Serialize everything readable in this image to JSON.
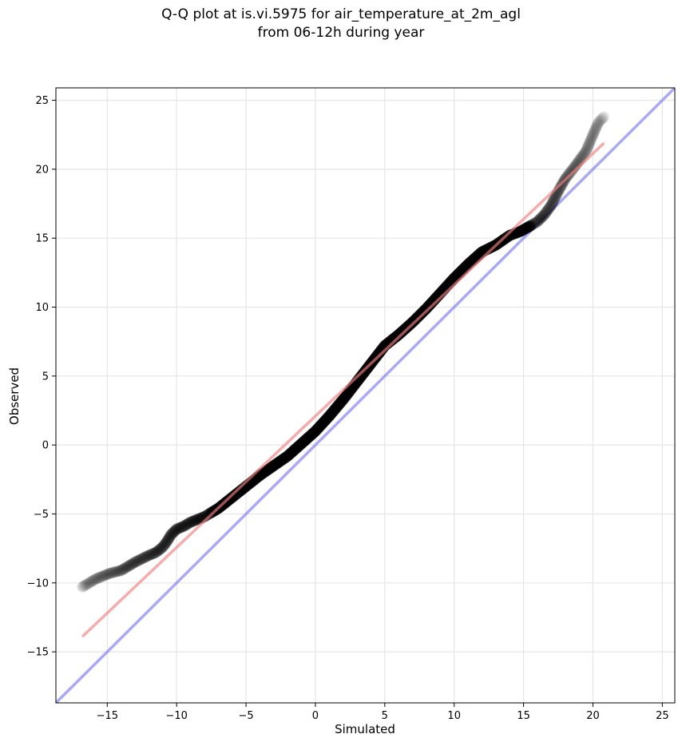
{
  "chart_data": {
    "type": "scatter",
    "title": [
      "Q-Q plot at is.vi.5975 for air_temperature_at_2m_agl",
      "from 06-12h during year"
    ],
    "xlabel": "Simulated",
    "ylabel": "Observed",
    "xlim": [
      -18.7,
      25.9
    ],
    "ylim": [
      -18.7,
      25.9
    ],
    "xticks": [
      -15,
      -10,
      -5,
      0,
      5,
      10,
      15,
      20,
      25
    ],
    "yticks": [
      -15,
      -10,
      -5,
      0,
      5,
      10,
      15,
      20,
      25
    ],
    "xtick_labels": [
      "−15",
      "−10",
      "−5",
      "0",
      "5",
      "10",
      "15",
      "20",
      "25"
    ],
    "ytick_labels": [
      "−15",
      "−10",
      "−5",
      "0",
      "5",
      "10",
      "15",
      "20",
      "25"
    ],
    "grid": true,
    "colors": {
      "points": "#000000",
      "fit_line": "#f08080",
      "identity_line": "#7b7bef",
      "grid": "#e6e6e6"
    },
    "quantile_curve": [
      [
        -16.8,
        -10.3
      ],
      [
        -15.8,
        -9.7
      ],
      [
        -14.8,
        -9.3
      ],
      [
        -14.0,
        -9.1
      ],
      [
        -13.0,
        -8.5
      ],
      [
        -12.0,
        -8.0
      ],
      [
        -11.5,
        -7.8
      ],
      [
        -11.0,
        -7.4
      ],
      [
        -10.7,
        -7.0
      ],
      [
        -10.4,
        -6.5
      ],
      [
        -10.0,
        -6.1
      ],
      [
        -9.5,
        -5.9
      ],
      [
        -9.0,
        -5.6
      ],
      [
        -8.5,
        -5.4
      ],
      [
        -8.0,
        -5.2
      ],
      [
        -7.5,
        -4.9
      ],
      [
        -7.0,
        -4.6
      ],
      [
        -6.5,
        -4.2
      ],
      [
        -6.0,
        -3.8
      ],
      [
        -5.5,
        -3.4
      ],
      [
        -5.0,
        -3.0
      ],
      [
        -4.5,
        -2.6
      ],
      [
        -4.0,
        -2.2
      ],
      [
        -3.0,
        -1.5
      ],
      [
        -2.0,
        -0.8
      ],
      [
        -1.0,
        0.1
      ],
      [
        0.0,
        1.0
      ],
      [
        1.0,
        2.1
      ],
      [
        2.0,
        3.3
      ],
      [
        3.0,
        4.6
      ],
      [
        4.0,
        5.9
      ],
      [
        5.0,
        7.2
      ],
      [
        6.0,
        8.0
      ],
      [
        7.0,
        8.9
      ],
      [
        8.0,
        9.9
      ],
      [
        9.0,
        11.0
      ],
      [
        10.0,
        12.1
      ],
      [
        11.0,
        13.1
      ],
      [
        12.0,
        14.0
      ],
      [
        13.0,
        14.5
      ],
      [
        14.0,
        15.2
      ],
      [
        14.8,
        15.5
      ],
      [
        15.5,
        15.9
      ],
      [
        16.0,
        16.2
      ],
      [
        16.5,
        16.7
      ],
      [
        17.0,
        17.4
      ],
      [
        17.5,
        18.4
      ],
      [
        18.0,
        19.3
      ],
      [
        18.7,
        20.2
      ],
      [
        19.5,
        21.3
      ],
      [
        20.0,
        22.5
      ],
      [
        20.4,
        23.4
      ],
      [
        20.8,
        23.8
      ]
    ],
    "fit_line": {
      "from": [
        -16.8,
        -13.9
      ],
      "to": [
        20.8,
        21.9
      ]
    },
    "identity_line": {
      "from": [
        -18.7,
        -18.7
      ],
      "to": [
        25.9,
        25.9
      ]
    }
  }
}
